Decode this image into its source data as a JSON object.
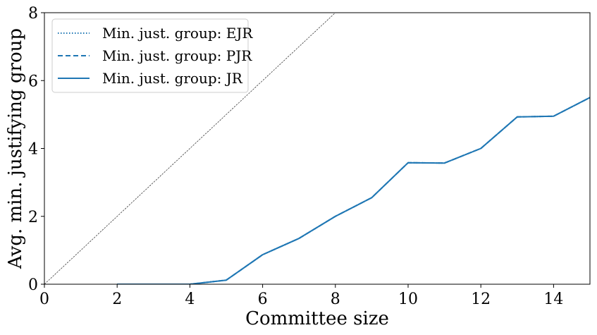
{
  "chart_data": {
    "type": "line",
    "xlabel": "Committee size",
    "ylabel": "Avg. min. justifying group",
    "xlim": [
      0,
      15
    ],
    "ylim": [
      0,
      8
    ],
    "xticks": [
      0,
      2,
      4,
      6,
      8,
      10,
      12,
      14
    ],
    "yticks": [
      0,
      2,
      4,
      6,
      8
    ],
    "grid": false,
    "legend_position": "top-left",
    "reference_line": {
      "x": [
        0,
        8
      ],
      "y": [
        0,
        8
      ],
      "color": "#000000",
      "style": "dashed"
    },
    "x": [
      2,
      3,
      4,
      5,
      6,
      7,
      8,
      9,
      10,
      11,
      12,
      13,
      14,
      15
    ],
    "series": [
      {
        "name": "Min. just. group: EJR",
        "style": "dotted",
        "color": "#1f77b4",
        "values": [
          0,
          0,
          0,
          0.12,
          0.87,
          1.35,
          2.0,
          2.55,
          3.58,
          3.57,
          4.0,
          4.93,
          4.95,
          5.5
        ]
      },
      {
        "name": "Min. just. group: PJR",
        "style": "dashed",
        "color": "#1f77b4",
        "values": [
          0,
          0,
          0,
          0.12,
          0.87,
          1.35,
          2.0,
          2.55,
          3.58,
          3.57,
          4.0,
          4.93,
          4.95,
          5.5
        ]
      },
      {
        "name": "Min. just. group: JR",
        "style": "solid",
        "color": "#1f77b4",
        "values": [
          0,
          0,
          0,
          0.12,
          0.87,
          1.35,
          2.0,
          2.55,
          3.58,
          3.57,
          4.0,
          4.93,
          4.95,
          5.5
        ]
      }
    ]
  }
}
